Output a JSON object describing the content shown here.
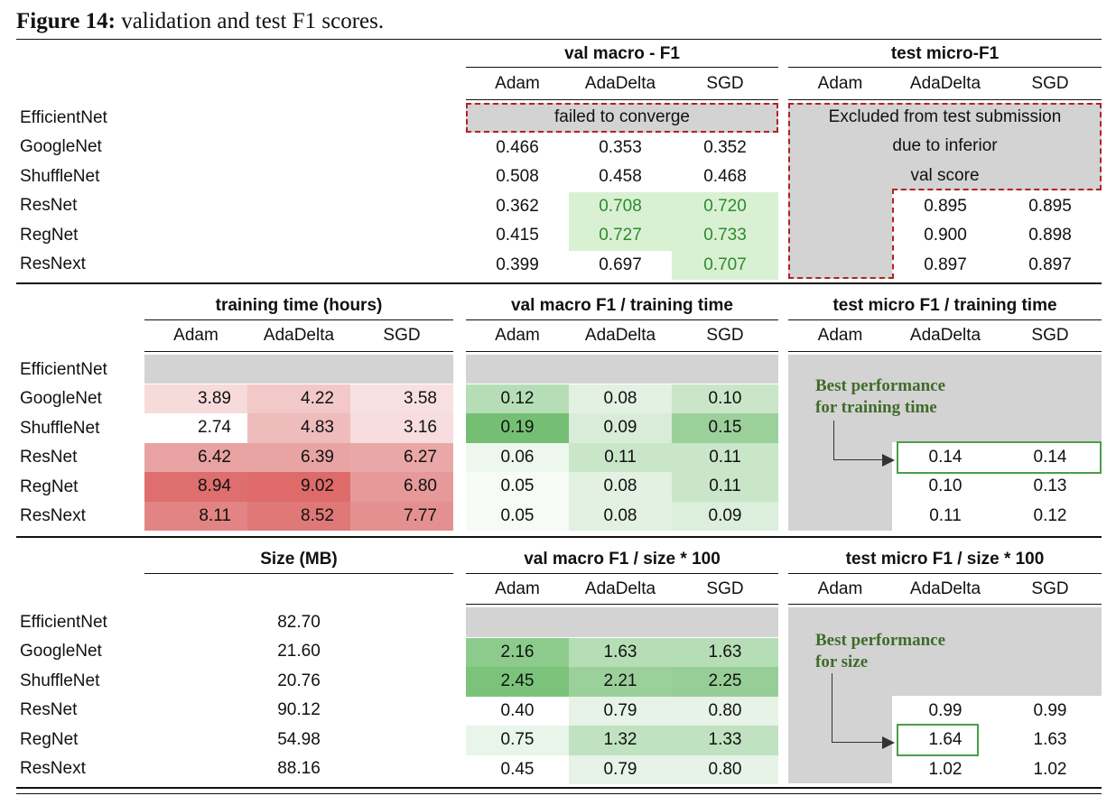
{
  "caption": {
    "label": "Figure 14:",
    "text": " validation and test F1 scores."
  },
  "models": [
    "EfficientNet",
    "GoogleNet",
    "ShuffleNet",
    "ResNet",
    "RegNet",
    "ResNext"
  ],
  "optimizers": [
    "Adam",
    "AdaDelta",
    "SGD"
  ],
  "section1": {
    "val_title": "val macro - F1",
    "test_title": "test micro-F1",
    "failed_label": "failed to converge",
    "excluded_label": [
      "Excluded from test submission",
      "due to inferior",
      "val score"
    ],
    "val": [
      [
        null,
        null,
        null
      ],
      [
        0.466,
        0.353,
        0.352
      ],
      [
        0.508,
        0.458,
        0.468
      ],
      [
        0.362,
        0.708,
        0.72
      ],
      [
        0.415,
        0.727,
        0.733
      ],
      [
        0.399,
        0.697,
        0.707
      ]
    ],
    "val_text": [
      [
        "",
        "",
        ""
      ],
      [
        "0.466",
        "0.353",
        "0.352"
      ],
      [
        "0.508",
        "0.458",
        "0.468"
      ],
      [
        "0.362",
        "0.708",
        "0.720"
      ],
      [
        "0.415",
        "0.727",
        "0.733"
      ],
      [
        "0.399",
        "0.697",
        "0.707"
      ]
    ],
    "test_text": [
      [
        "",
        "",
        ""
      ],
      [
        "",
        "",
        ""
      ],
      [
        "",
        "",
        ""
      ],
      [
        "",
        "0.895",
        "0.895"
      ],
      [
        "",
        "0.900",
        "0.898"
      ],
      [
        "",
        "0.897",
        "0.897"
      ]
    ]
  },
  "section2": {
    "time_title": "training time (hours)",
    "val_title": "val macro F1 / training time",
    "test_title": "test micro F1 / training time",
    "time_text": [
      [
        "",
        "",
        ""
      ],
      [
        "3.89",
        "4.22",
        "3.58"
      ],
      [
        "2.74",
        "4.83",
        "3.16"
      ],
      [
        "6.42",
        "6.39",
        "6.27"
      ],
      [
        "8.94",
        "9.02",
        "6.80"
      ],
      [
        "8.11",
        "8.52",
        "7.77"
      ]
    ],
    "val_text": [
      [
        "",
        "",
        ""
      ],
      [
        "0.12",
        "0.08",
        "0.10"
      ],
      [
        "0.19",
        "0.09",
        "0.15"
      ],
      [
        "0.06",
        "0.11",
        "0.11"
      ],
      [
        "0.05",
        "0.08",
        "0.11"
      ],
      [
        "0.05",
        "0.08",
        "0.09"
      ]
    ],
    "test_text": [
      [
        "",
        "",
        ""
      ],
      [
        "",
        "",
        ""
      ],
      [
        "",
        "",
        ""
      ],
      [
        "",
        "0.14",
        "0.14"
      ],
      [
        "",
        "0.10",
        "0.13"
      ],
      [
        "",
        "0.11",
        "0.12"
      ]
    ],
    "note": [
      "Best performance",
      "for training time"
    ],
    "time_colors": [
      [
        null,
        null,
        null
      ],
      [
        "#f7dada",
        "#f2c8c8",
        "#f8e0e0"
      ],
      [
        "#ffffff",
        "#efbcbc",
        "#f7dddd"
      ],
      [
        "#e8a2a2",
        "#e8a3a3",
        "#e9a7a7"
      ],
      [
        "#df6e6e",
        "#de6a6a",
        "#e7999a"
      ],
      [
        "#e38484",
        "#e07878",
        "#e49090"
      ]
    ],
    "val_colors": [
      [
        null,
        null,
        null
      ],
      [
        "#b6deb6",
        "#e2f1e2",
        "#c9e6c9"
      ],
      [
        "#75bf75",
        "#d8ecd8",
        "#9bd09b"
      ],
      [
        "#eef7ee",
        "#c9e6c9",
        "#c9e6c9"
      ],
      [
        "#f6fbf6",
        "#e2f1e2",
        "#c9e6c9"
      ],
      [
        "#f6fbf6",
        "#e2f1e2",
        "#dceedc"
      ]
    ]
  },
  "section3": {
    "size_title": "Size (MB)",
    "val_title": "val macro F1 / size * 100",
    "test_title": "test micro F1 / size * 100",
    "size_text": [
      "82.70",
      "21.60",
      "20.76",
      "90.12",
      "54.98",
      "88.16"
    ],
    "val_text": [
      [
        "",
        "",
        ""
      ],
      [
        "2.16",
        "1.63",
        "1.63"
      ],
      [
        "2.45",
        "2.21",
        "2.25"
      ],
      [
        "0.40",
        "0.79",
        "0.80"
      ],
      [
        "0.75",
        "1.32",
        "1.33"
      ],
      [
        "0.45",
        "0.79",
        "0.80"
      ]
    ],
    "test_text": [
      [
        "",
        "",
        ""
      ],
      [
        "",
        "",
        ""
      ],
      [
        "",
        "",
        ""
      ],
      [
        "",
        "0.99",
        "0.99"
      ],
      [
        "",
        "1.64",
        "1.63"
      ],
      [
        "",
        "1.02",
        "1.02"
      ]
    ],
    "note": [
      "Best performance",
      "for size"
    ],
    "val_colors": [
      [
        null,
        null,
        null
      ],
      [
        "#8ccb8c",
        "#b6deb6",
        "#b6deb6"
      ],
      [
        "#7bc37b",
        "#9bd09b",
        "#97ce97"
      ],
      [
        "#ffffff",
        "#e6f3e6",
        "#e6f3e6"
      ],
      [
        "#eaf5ea",
        "#c0e2c0",
        "#c0e2c0"
      ],
      [
        "#ffffff",
        "#e6f3e6",
        "#e6f3e6"
      ]
    ]
  },
  "highlight_colors": {
    "val_green": "#d9f0d3",
    "gray": "#d3d3d3",
    "dash": "#b22222",
    "box": "#4a9e4a"
  }
}
